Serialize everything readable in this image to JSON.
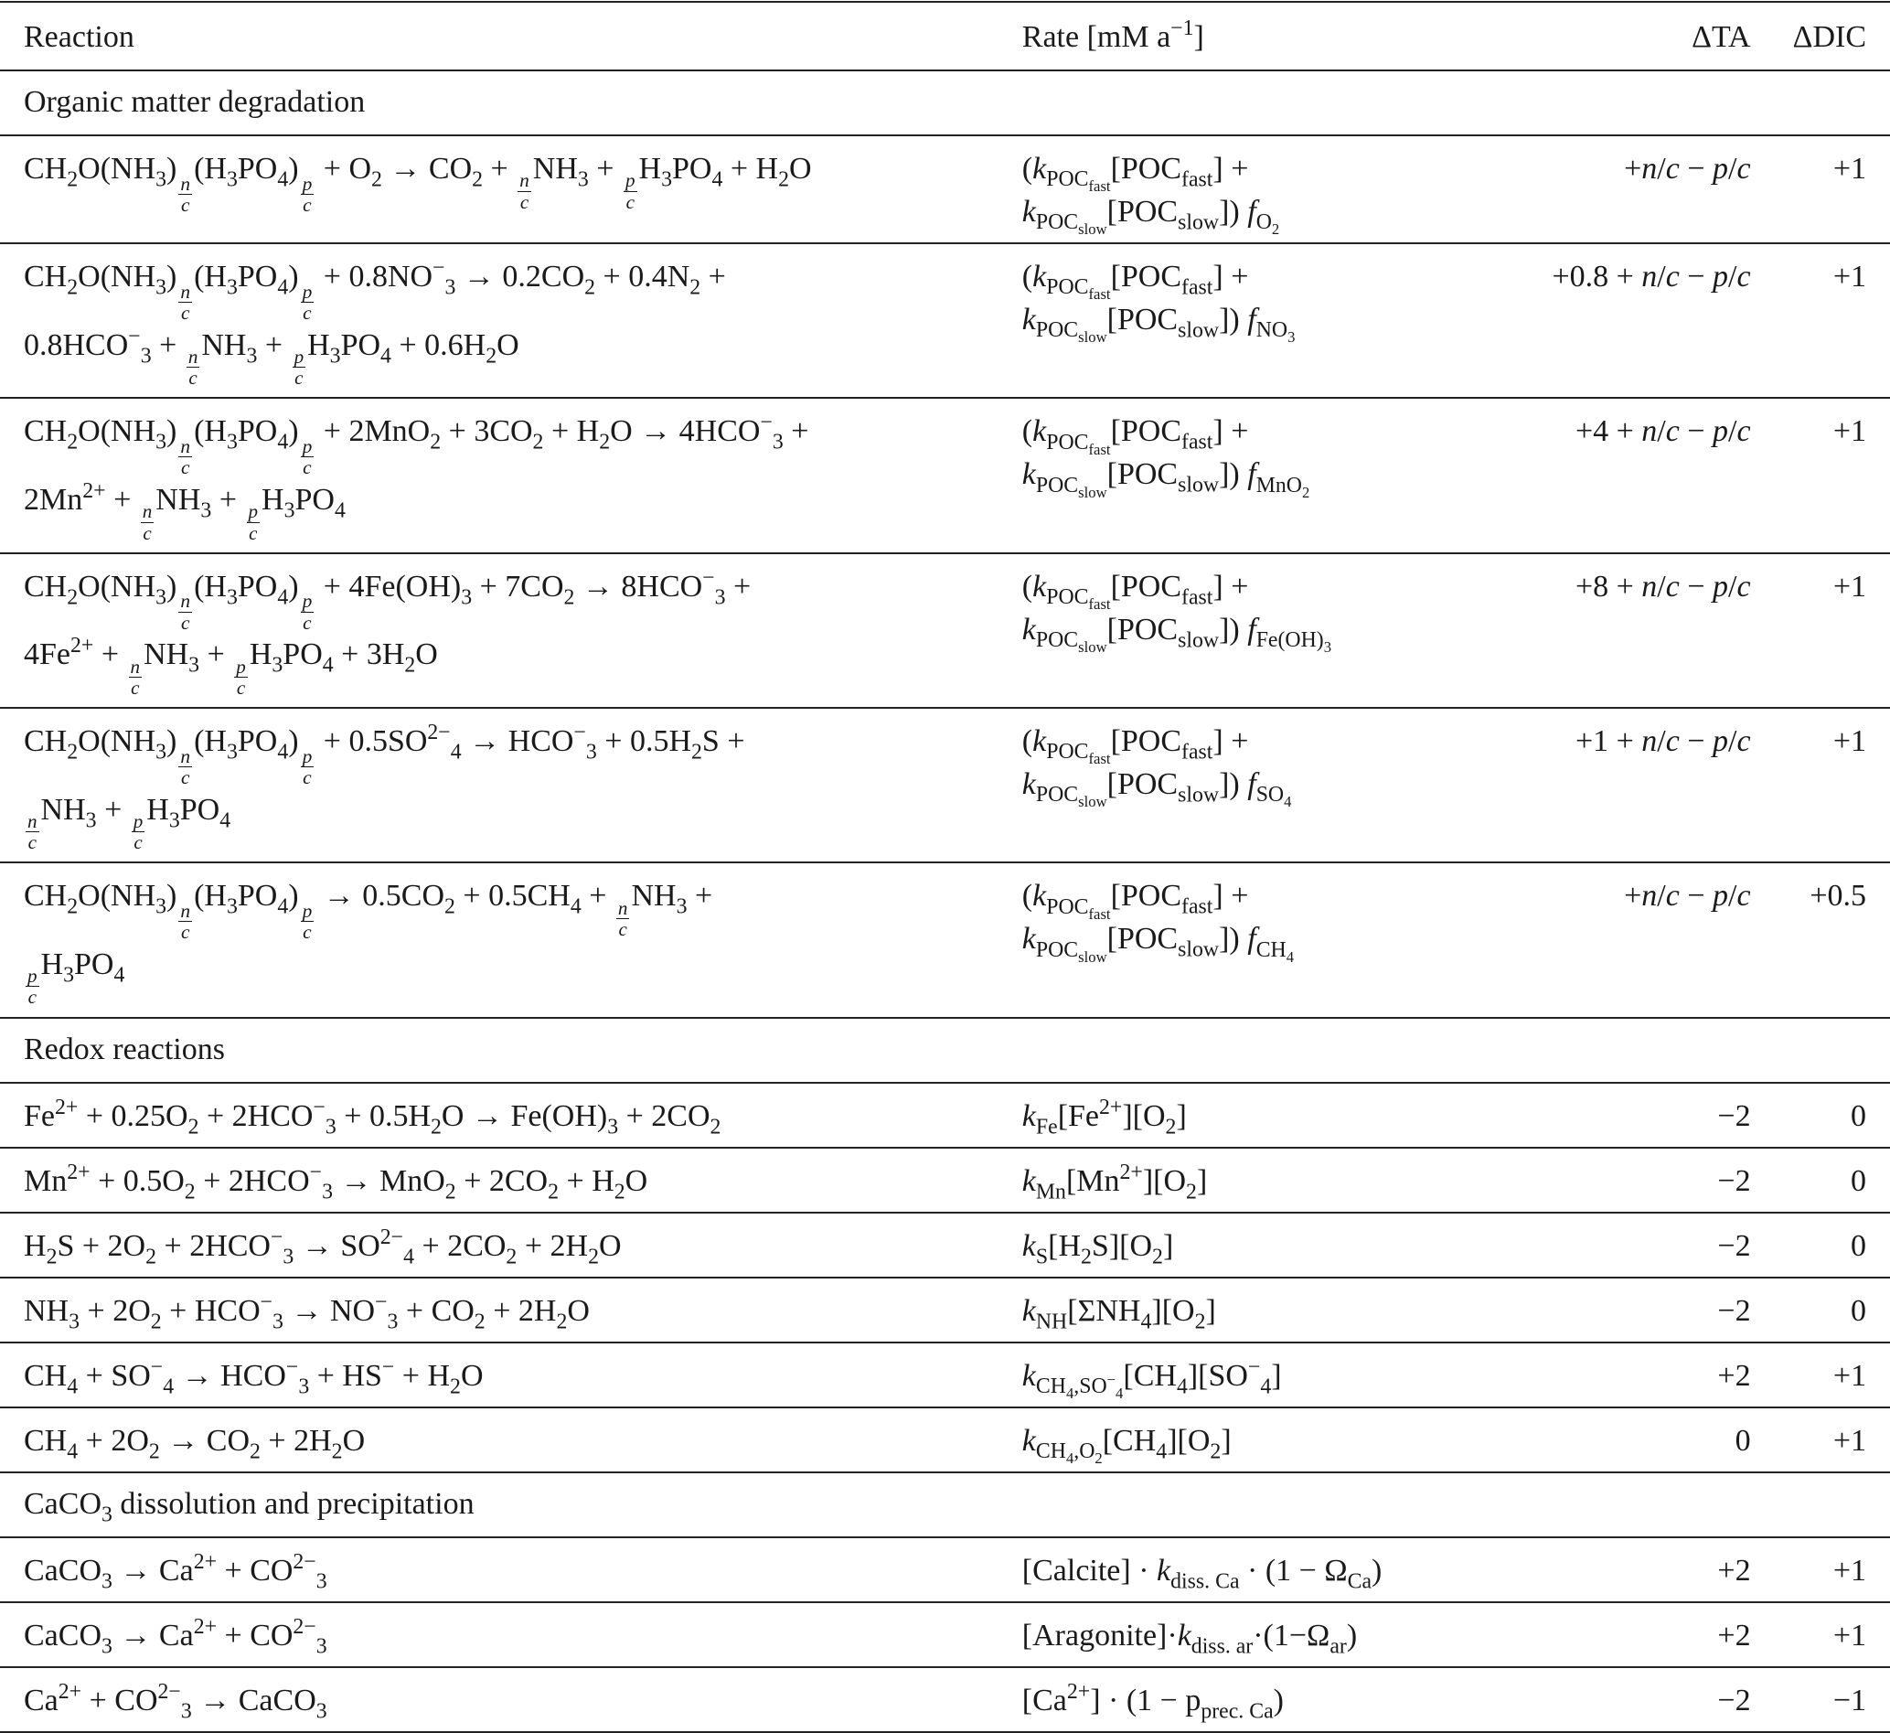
{
  "header": {
    "reaction": "Reaction",
    "rate": "Rate [mM a^{−1}]",
    "ta": "ΔTA",
    "dic": "ΔDIC"
  },
  "sections": [
    {
      "title": "Organic matter degradation",
      "rows": [
        {
          "reaction": [
            "CH_{2}O(NH_{3})_{\\f{n}{c}}(H_{3}PO_{4})_{\\f{p}{c}} + O_{2} → CO_{2} + \\f{n}{c}NH_{3} + \\f{p}{c}H_{3}PO_{4} + H_{2}O"
          ],
          "rate": [
            "(\\i{k}_{POC_{fast}}[POC_{fast}] +",
            "\\i{k}_{POC_{slow}}[POC_{slow}]) \\i{f}_{O_{2}}"
          ],
          "ta": "+\\i{n}/\\i{c} − \\i{p}/\\i{c}",
          "dic": "+1"
        },
        {
          "reaction": [
            "CH_{2}O(NH_{3})_{\\f{n}{c}}(H_{3}PO_{4})_{\\f{p}{c}} + 0.8NO^{−}_{3} → 0.2CO_{2} + 0.4N_{2} +",
            "0.8HCO^{−}_{3} + \\f{n}{c}NH_{3} + \\f{p}{c}H_{3}PO_{4} + 0.6H_{2}O"
          ],
          "rate": [
            "(\\i{k}_{POC_{fast}}[POC_{fast}] +",
            "\\i{k}_{POC_{slow}}[POC_{slow}]) \\i{f}_{NO_{3}}"
          ],
          "ta": "+0.8 + \\i{n}/\\i{c} − \\i{p}/\\i{c}",
          "dic": "+1"
        },
        {
          "reaction": [
            "CH_{2}O(NH_{3})_{\\f{n}{c}}(H_{3}PO_{4})_{\\f{p}{c}} + 2MnO_{2} + 3CO_{2} + H_{2}O → 4HCO^{−}_{3} +",
            "2Mn^{2+} + \\f{n}{c}NH_{3} + \\f{p}{c}H_{3}PO_{4}"
          ],
          "rate": [
            "(\\i{k}_{POC_{fast}}[POC_{fast}] +",
            "\\i{k}_{POC_{slow}}[POC_{slow}]) \\i{f}_{MnO_{2}}"
          ],
          "ta": "+4 + \\i{n}/\\i{c} − \\i{p}/\\i{c}",
          "dic": "+1"
        },
        {
          "reaction": [
            "CH_{2}O(NH_{3})_{\\f{n}{c}}(H_{3}PO_{4})_{\\f{p}{c}} + 4Fe(OH)_{3} + 7CO_{2} → 8HCO^{−}_{3} +",
            "4Fe^{2+} + \\f{n}{c}NH_{3} + \\f{p}{c}H_{3}PO_{4} + 3H_{2}O"
          ],
          "rate": [
            "(\\i{k}_{POC_{fast}}[POC_{fast}] +",
            "\\i{k}_{POC_{slow}}[POC_{slow}]) \\i{f}_{Fe(OH)_{3}}"
          ],
          "ta": "+8 + \\i{n}/\\i{c} − \\i{p}/\\i{c}",
          "dic": "+1"
        },
        {
          "reaction": [
            "CH_{2}O(NH_{3})_{\\f{n}{c}}(H_{3}PO_{4})_{\\f{p}{c}} + 0.5SO^{2−}_{4} → HCO^{−}_{3} + 0.5H_{2}S +",
            "\\f{n}{c}NH_{3} + \\f{p}{c}H_{3}PO_{4}"
          ],
          "rate": [
            "(\\i{k}_{POC_{fast}}[POC_{fast}] +",
            "\\i{k}_{POC_{slow}}[POC_{slow}]) \\i{f}_{SO_{4}}"
          ],
          "ta": "+1 + \\i{n}/\\i{c} − \\i{p}/\\i{c}",
          "dic": "+1"
        },
        {
          "reaction": [
            "CH_{2}O(NH_{3})_{\\f{n}{c}}(H_{3}PO_{4})_{\\f{p}{c}} → 0.5CO_{2} + 0.5CH_{4} + \\f{n}{c}NH_{3} +",
            "\\f{p}{c}H_{3}PO_{4}"
          ],
          "rate": [
            "(\\i{k}_{POC_{fast}}[POC_{fast}] +",
            "\\i{k}_{POC_{slow}}[POC_{slow}]) \\i{f}_{CH_{4}}"
          ],
          "ta": "+\\i{n}/\\i{c} − \\i{p}/\\i{c}",
          "dic": "+0.5"
        }
      ]
    },
    {
      "title": "Redox reactions",
      "rows": [
        {
          "reaction": [
            "Fe^{2+} + 0.25O_{2} + 2HCO^{−}_{3} + 0.5H_{2}O → Fe(OH)_{3} + 2CO_{2}"
          ],
          "rate": [
            "\\i{k}_{Fe}[Fe^{2+}][O_{2}]"
          ],
          "ta": "−2",
          "dic": "0"
        },
        {
          "reaction": [
            "Mn^{2+} + 0.5O_{2} + 2HCO^{−}_{3} → MnO_{2} + 2CO_{2} + H_{2}O"
          ],
          "rate": [
            "\\i{k}_{Mn}[Mn^{2+}][O_{2}]"
          ],
          "ta": "−2",
          "dic": "0"
        },
        {
          "reaction": [
            "H_{2}S + 2O_{2} + 2HCO^{−}_{3} → SO^{2−}_{4} + 2CO_{2} + 2H_{2}O"
          ],
          "rate": [
            "\\i{k}_{S}[H_{2}S][O_{2}]"
          ],
          "ta": "−2",
          "dic": "0"
        },
        {
          "reaction": [
            "NH_{3} + 2O_{2} + HCO^{−}_{3} → NO^{−}_{3} + CO_{2} + 2H_{2}O"
          ],
          "rate": [
            "\\i{k}_{NH}[ΣNH_{4}][O_{2}]"
          ],
          "ta": "−2",
          "dic": "0"
        },
        {
          "reaction": [
            "CH_{4} + SO^{−}_{4} → HCO^{−}_{3} + HS^{−} + H_{2}O"
          ],
          "rate": [
            "\\i{k}_{CH_{4},SO^{−}_{4}}[CH_{4}][SO^{−}_{4}]"
          ],
          "ta": "+2",
          "dic": "+1"
        },
        {
          "reaction": [
            "CH_{4} + 2O_{2} → CO_{2} + 2H_{2}O"
          ],
          "rate": [
            "\\i{k}_{CH_{4},O_{2}}[CH_{4}][O_{2}]"
          ],
          "ta": "0",
          "dic": "+1"
        }
      ]
    },
    {
      "title": "CaCO_{3} dissolution and precipitation",
      "rows": [
        {
          "reaction": [
            "CaCO_{3} → Ca^{2+} + CO^{2−}_{3}"
          ],
          "rate": [
            "[Calcite] · \\i{k}_{diss. Ca} · (1 − Ω_{Ca})"
          ],
          "ta": "+2",
          "dic": "+1"
        },
        {
          "reaction": [
            "CaCO_{3} → Ca^{2+} + CO^{2−}_{3}"
          ],
          "rate": [
            "[Aragonite]·\\i{k}_{diss. ar}·(1−Ω_{ar})"
          ],
          "ta": "+2",
          "dic": "+1"
        },
        {
          "reaction": [
            "Ca^{2+} + CO^{2−}_{3} → CaCO_{3}"
          ],
          "rate": [
            "[Ca^{2+}] · (1 − p_{prec. Ca})"
          ],
          "ta": "−2",
          "dic": "−1"
        }
      ]
    }
  ]
}
